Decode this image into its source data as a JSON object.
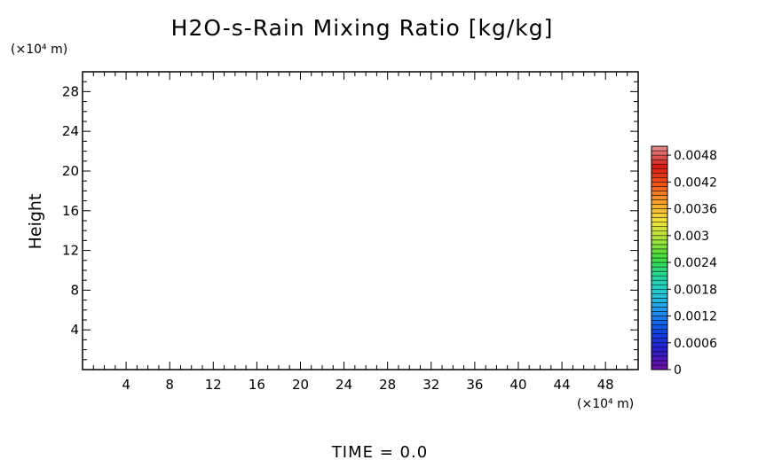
{
  "chart_data": {
    "type": "heatmap",
    "title": "H2O-s-Rain Mixing Ratio [kg/kg]",
    "ylabel": "Height",
    "y_unit": "(×10⁴ m)",
    "x_unit": "(×10⁴ m)",
    "x_ticks": [
      4,
      8,
      12,
      16,
      20,
      24,
      28,
      32,
      36,
      40,
      44,
      48
    ],
    "y_ticks": [
      4,
      8,
      12,
      16,
      20,
      24,
      28
    ],
    "xlim": [
      0,
      51
    ],
    "ylim": [
      0,
      30
    ],
    "values": [],
    "colorbar": {
      "labels": [
        "0.0048",
        "0.0042",
        "0.0036",
        "0.003",
        "0.0024",
        "0.0018",
        "0.0012",
        "0.0006",
        "0"
      ],
      "min": 0,
      "max": 0.005,
      "colors": [
        "#6a0fa8",
        "#2a1ed0",
        "#0c45e6",
        "#1f8ef0",
        "#27c6d8",
        "#23d79a",
        "#3fe040",
        "#a6e23a",
        "#efe43a",
        "#f7a52e",
        "#f2581f",
        "#d91a12",
        "#e48585"
      ]
    },
    "footer": "TIME = 0.0"
  }
}
